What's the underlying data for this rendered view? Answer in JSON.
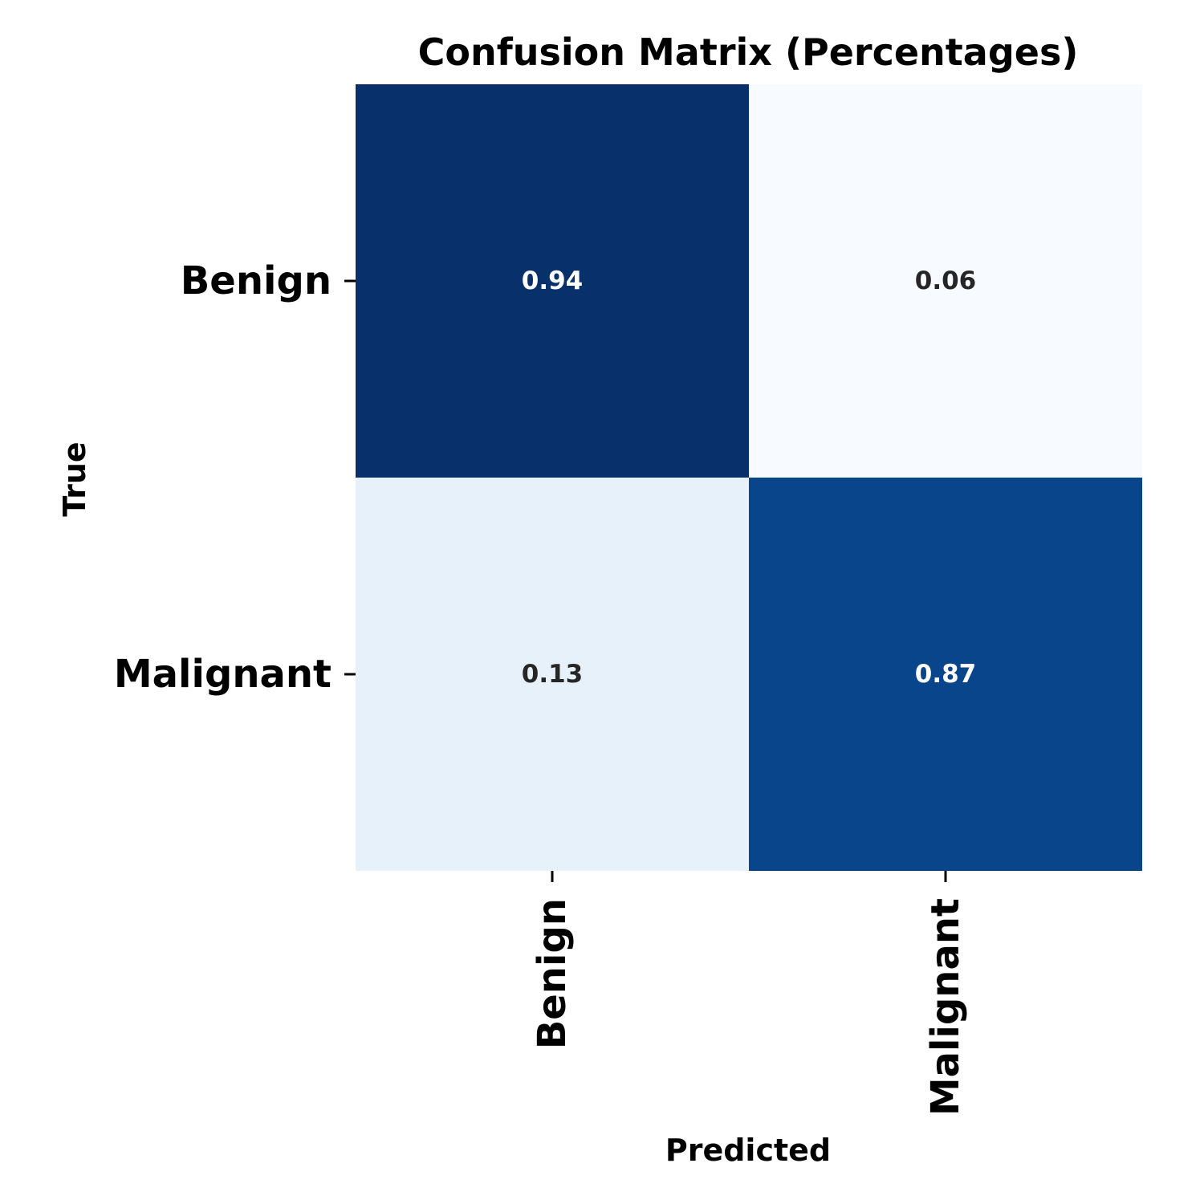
{
  "chart_data": {
    "type": "heatmap",
    "title": "Confusion Matrix (Percentages)",
    "xlabel": "Predicted",
    "ylabel": "True",
    "x_categories": [
      "Benign",
      "Malignant"
    ],
    "y_categories": [
      "Benign",
      "Malignant"
    ],
    "values": [
      [
        0.94,
        0.06
      ],
      [
        0.13,
        0.87
      ]
    ],
    "cell_labels": [
      [
        "0.94",
        "0.06"
      ],
      [
        "0.13",
        "0.87"
      ]
    ],
    "colormap": "Blues",
    "colorbar": false,
    "colors": {
      "low": "#f7fbff",
      "high": "#08306b",
      "light_text": "#ffffff",
      "dark_text": "#262626"
    }
  }
}
